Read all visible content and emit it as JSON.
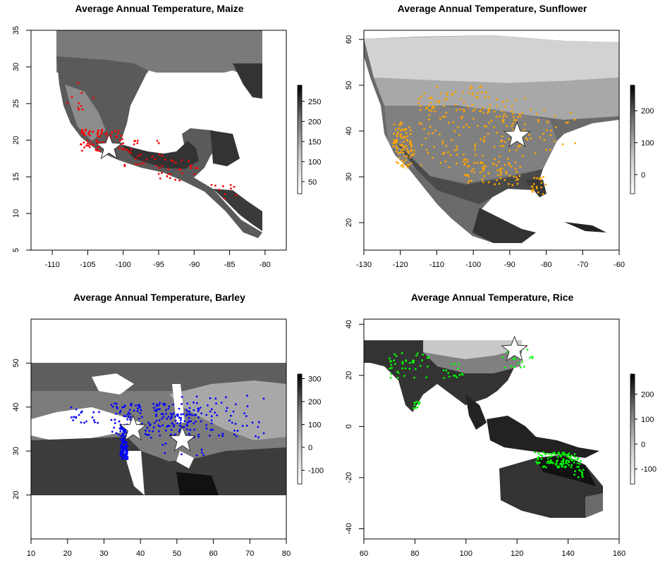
{
  "panels": [
    {
      "id": "maize",
      "title": "Average Annual Temperature, Maize",
      "crop": "Maize",
      "point_color": "#ff0000",
      "xlim": [
        -113,
        -77
      ],
      "ylim": [
        5,
        35
      ],
      "x_ticks": [
        -110,
        -105,
        -100,
        -95,
        -90,
        -85,
        -80
      ],
      "y_ticks": [
        5,
        10,
        15,
        20,
        25,
        30,
        35
      ],
      "star": {
        "lon": -102,
        "lat": 19
      },
      "legend": {
        "range": [
          20,
          290
        ],
        "ticks": [
          50,
          100,
          150,
          200,
          250
        ]
      }
    },
    {
      "id": "sunflower",
      "title": "Average Annual Temperature, Sunflower",
      "crop": "Sunflower",
      "point_color": "#ffa500",
      "xlim": [
        -130,
        -60
      ],
      "ylim": [
        14,
        62
      ],
      "x_ticks": [
        -130,
        -120,
        -110,
        -100,
        -90,
        -80,
        -70,
        -60
      ],
      "y_ticks": [
        20,
        30,
        40,
        50,
        60
      ],
      "star": {
        "lon": -88,
        "lat": 39
      },
      "legend": {
        "range": [
          -60,
          280
        ],
        "ticks": [
          0,
          100,
          200
        ]
      }
    },
    {
      "id": "barley",
      "title": "Average Annual Temperature, Barley",
      "crop": "Barley",
      "point_color": "#0000ff",
      "xlim": [
        10,
        80
      ],
      "ylim": [
        10,
        60
      ],
      "x_ticks": [
        10,
        20,
        30,
        40,
        50,
        60,
        70,
        80
      ],
      "y_ticks": [
        20,
        30,
        40,
        50
      ],
      "star": {
        "lon": 38,
        "lat": 35,
        "lon2": 51.5,
        "lat2": 32.5
      },
      "legend": {
        "range": [
          -160,
          320
        ],
        "ticks": [
          -100,
          0,
          100,
          200,
          300
        ]
      }
    },
    {
      "id": "rice",
      "title": "Average Annual Temperature, Rice",
      "crop": "Rice",
      "point_color": "#00ff00",
      "xlim": [
        60,
        160
      ],
      "ylim": [
        -44,
        42
      ],
      "x_ticks": [
        60,
        80,
        100,
        120,
        140,
        160
      ],
      "y_ticks": [
        -40,
        -20,
        0,
        20,
        40
      ],
      "star": {
        "lon": 119,
        "lat": 30
      },
      "legend": {
        "range": [
          -160,
          280
        ],
        "ticks": [
          -100,
          0,
          100,
          200
        ]
      }
    }
  ]
}
